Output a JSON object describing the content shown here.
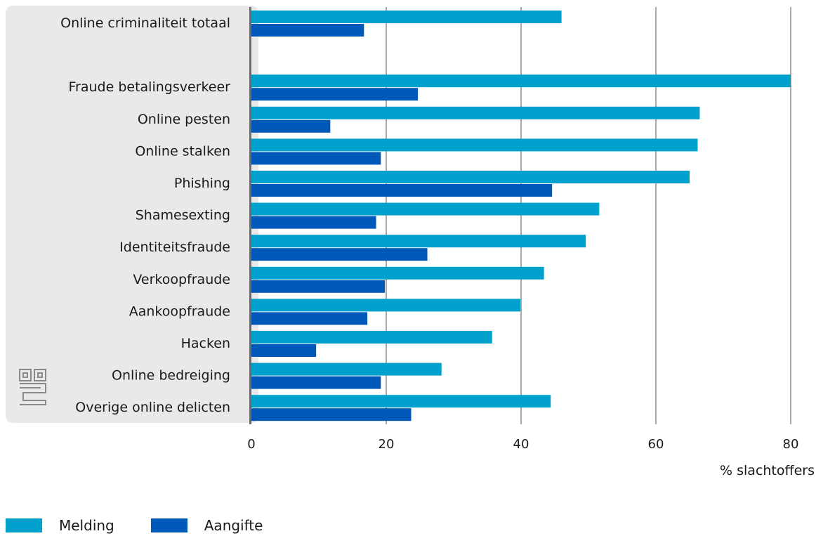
{
  "chart_data": {
    "type": "bar",
    "orientation": "horizontal",
    "categories": [
      "Online criminaliteit totaal",
      "",
      "Fraude betalingsverkeer",
      "Online pesten",
      "Online stalken",
      "Phishing",
      "Shamesexting",
      "Identiteitsfraude",
      "Verkoopfraude",
      "Aankoopfraude",
      "Hacken",
      "Online bedreiging",
      "Overige online delicten"
    ],
    "series": [
      {
        "name": "Melding",
        "color": "#00a1cd",
        "values": [
          46.0,
          null,
          80.0,
          66.5,
          66.2,
          65.0,
          51.6,
          49.6,
          43.4,
          39.9,
          35.7,
          28.2,
          44.4
        ]
      },
      {
        "name": "Aangifte",
        "color": "#0058b8",
        "values": [
          16.7,
          null,
          24.7,
          11.7,
          19.2,
          44.6,
          18.5,
          26.1,
          19.8,
          17.2,
          9.6,
          19.2,
          23.7
        ]
      }
    ],
    "xlabel": "% slachtoffers",
    "xlim": [
      0,
      80
    ],
    "xticks": [
      0,
      20,
      40,
      60,
      80
    ],
    "grid": true,
    "legend_position": "bottom-left"
  },
  "logo": "cbs-logo-icon"
}
